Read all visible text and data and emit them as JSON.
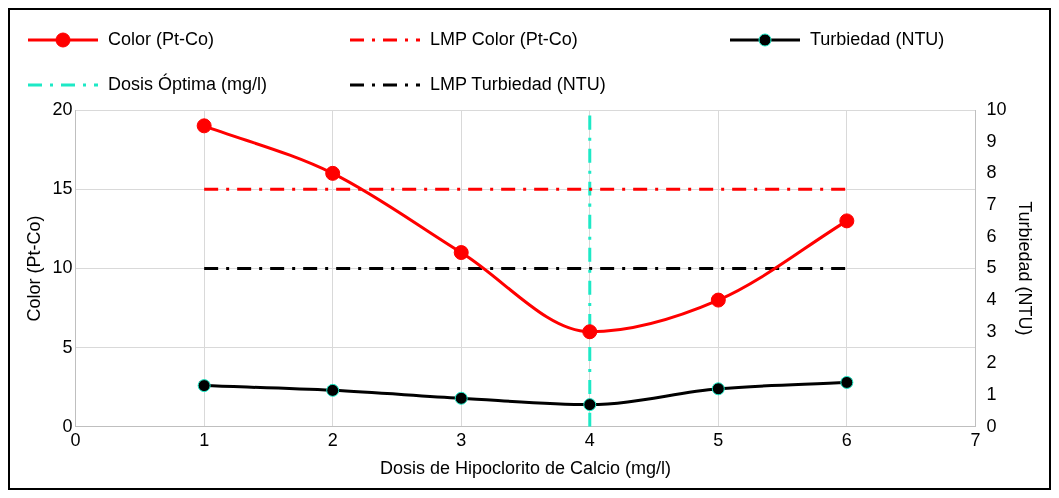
{
  "chart_data": {
    "type": "line",
    "xlabel": "Dosis de Hipoclorito de Calcio (mg/l)",
    "ylabel": "Color (Pt-Co)",
    "y2label": "Turbiedad (NTU)",
    "xlim": [
      0,
      7
    ],
    "xticks": [
      0,
      1,
      2,
      3,
      4,
      5,
      6,
      7
    ],
    "ylim": [
      0,
      20
    ],
    "yticks": [
      0,
      5,
      10,
      15,
      20
    ],
    "y2lim": [
      0,
      10
    ],
    "y2ticks": [
      0,
      1,
      2,
      3,
      4,
      5,
      6,
      7,
      8,
      9,
      10
    ],
    "grid": true,
    "legend": "top",
    "series": [
      {
        "name": "Color (Pt-Co)",
        "color": "#ff0000",
        "x": [
          1,
          2,
          3,
          4,
          5,
          6
        ],
        "values": [
          19,
          16,
          11,
          6,
          8,
          13
        ],
        "marker": "circle",
        "line_style": "solid"
      },
      {
        "name": "LMP Color (Pt-Co)",
        "color": "#ff0000",
        "x": [
          1,
          6
        ],
        "values": [
          15,
          15
        ],
        "marker": "none",
        "line_style": "dashdot"
      },
      {
        "name": "Turbiedad (NTU)",
        "color": "#000000",
        "axis": "y2",
        "x": [
          1,
          2,
          3,
          4,
          5,
          6
        ],
        "values": [
          1.3,
          1.15,
          0.9,
          0.7,
          1.2,
          1.4
        ],
        "marker": "circle",
        "line_style": "solid"
      },
      {
        "name": "Dosis Óptima (mg/l)",
        "color": "#1de9c6",
        "x": [
          4,
          4
        ],
        "values": [
          0,
          20
        ],
        "marker": "none",
        "line_style": "dashdot"
      },
      {
        "name": "LMP Turbiedad (NTU)",
        "color": "#000000",
        "axis": "y2",
        "x": [
          1,
          6
        ],
        "values": [
          5,
          5
        ],
        "marker": "none",
        "line_style": "dashdot"
      }
    ]
  }
}
